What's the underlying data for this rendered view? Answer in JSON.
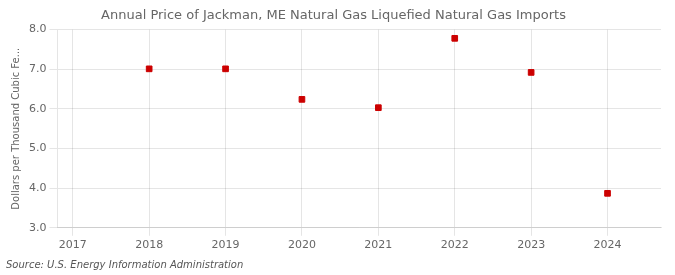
{
  "chart_data": {
    "type": "scatter",
    "title": "Annual Price of Jackman, ME Natural Gas Liquefied Natural Gas Imports",
    "ylabel": "Dollars per Thousand Cubic Fe...",
    "source": "Source: U.S. Energy Information Administration",
    "x": [
      2018,
      2019,
      2020,
      2021,
      2022,
      2023,
      2024
    ],
    "values": [
      7.01,
      7.01,
      6.24,
      6.03,
      7.78,
      6.92,
      3.87
    ],
    "color": "#cc0000",
    "marker": "square",
    "xlim": [
      2016.8,
      2024.7
    ],
    "ylim": [
      3.0,
      8.0
    ],
    "xticks": [
      2017,
      2018,
      2019,
      2020,
      2021,
      2022,
      2023,
      2024
    ],
    "yticks": [
      {
        "value": 3.0,
        "label": "3.0"
      },
      {
        "value": 4.0,
        "label": "4.0"
      },
      {
        "value": 5.0,
        "label": "5.0"
      },
      {
        "value": 6.0,
        "label": "6.0"
      },
      {
        "value": 7.0,
        "label": "7.0"
      },
      {
        "value": 8.0,
        "label": "8.0"
      }
    ],
    "grid": true
  }
}
